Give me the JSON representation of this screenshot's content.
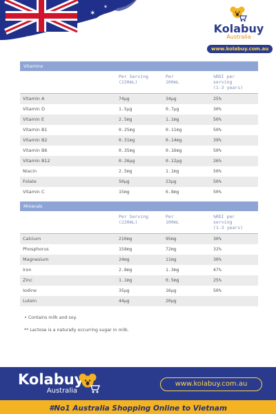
{
  "brand": {
    "name": "Kolabuy",
    "sub": "Australia",
    "url": "www.kolabuy.com.au"
  },
  "vitamins": {
    "title": "Vitamins",
    "columns": {
      "per_serving_line1": "Per Serving",
      "per_serving_line2": "(220mL)",
      "per_100_line1": "Per",
      "per_100_line2": "100mL",
      "rdi_line1": "%RDI per",
      "rdi_line2": "serving",
      "rdi_line3": "(1-3 years)"
    },
    "rows": [
      {
        "name": "Vitamin A",
        "serving": "74µg",
        "per100": "34µg",
        "rdi": "25%"
      },
      {
        "name": "Vitamin D",
        "serving": "1.5µg",
        "per100": "0.7µg",
        "rdi": "30%"
      },
      {
        "name": "Vitamin E",
        "serving": "2.5mg",
        "per100": "1.1mg",
        "rdi": "50%"
      },
      {
        "name": "Vitamin B1",
        "serving": "0.25mg",
        "per100": "0.11mg",
        "rdi": "50%"
      },
      {
        "name": "Vitamin B2",
        "serving": "0.31mg",
        "per100": "0.14mg",
        "rdi": "39%"
      },
      {
        "name": "Vitamin B6",
        "serving": "0.35mg",
        "per100": "0.16mg",
        "rdi": "50%"
      },
      {
        "name": "Vitamin B12",
        "serving": "0.26µg",
        "per100": "0.12µg",
        "rdi": "26%"
      },
      {
        "name": "Niacin",
        "serving": "2.5mg",
        "per100": "1.1mg",
        "rdi": "50%"
      },
      {
        "name": "Folate",
        "serving": "50µg",
        "per100": "23µg",
        "rdi": "50%"
      },
      {
        "name": "Vitamin C",
        "serving": "15mg",
        "per100": "6.8mg",
        "rdi": "50%"
      }
    ]
  },
  "minerals": {
    "title": "Minerals",
    "columns": {
      "per_serving_line1": "Per Serving",
      "per_serving_line2": "(220mL)",
      "per_100_line1": "Per",
      "per_100_line2": "100mL",
      "rdi_line1": "%RDI per",
      "rdi_line2": "serving",
      "rdi_line3": "(1-3 years)"
    },
    "rows": [
      {
        "name": "Calcium",
        "serving": "210mg",
        "per100": "95mg",
        "rdi": "30%"
      },
      {
        "name": "Phosphorus",
        "serving": "158mg",
        "per100": "72mg",
        "rdi": "32%"
      },
      {
        "name": "Magnesium",
        "serving": "24mg",
        "per100": "11mg",
        "rdi": "30%"
      },
      {
        "name": "Iron",
        "serving": "2.8mg",
        "per100": "1.3mg",
        "rdi": "47%"
      },
      {
        "name": "Zinc",
        "serving": "1.1mg",
        "per100": "0.5mg",
        "rdi": "25%"
      },
      {
        "name": "Iodine",
        "serving": "35µg",
        "per100": "16µg",
        "rdi": "50%"
      },
      {
        "name": "Lutein",
        "serving": "44µg",
        "per100": "20µg",
        "rdi": ""
      }
    ]
  },
  "notes": {
    "note1": "•  Contains milk and soy.",
    "note2": "** Lactose is a naturally occurring sugar in milk."
  },
  "footer": {
    "logo_name": "Kolabuy",
    "logo_sub": "Australia",
    "url": "www.kolabuy.com.au",
    "tagline": "#No1 Australia Shopping Online to Vietnam"
  },
  "colors": {
    "navy": "#2a3a8c",
    "header_blue": "#8da4d4",
    "gold": "#f4b322",
    "row_alt": "#ebebeb"
  }
}
